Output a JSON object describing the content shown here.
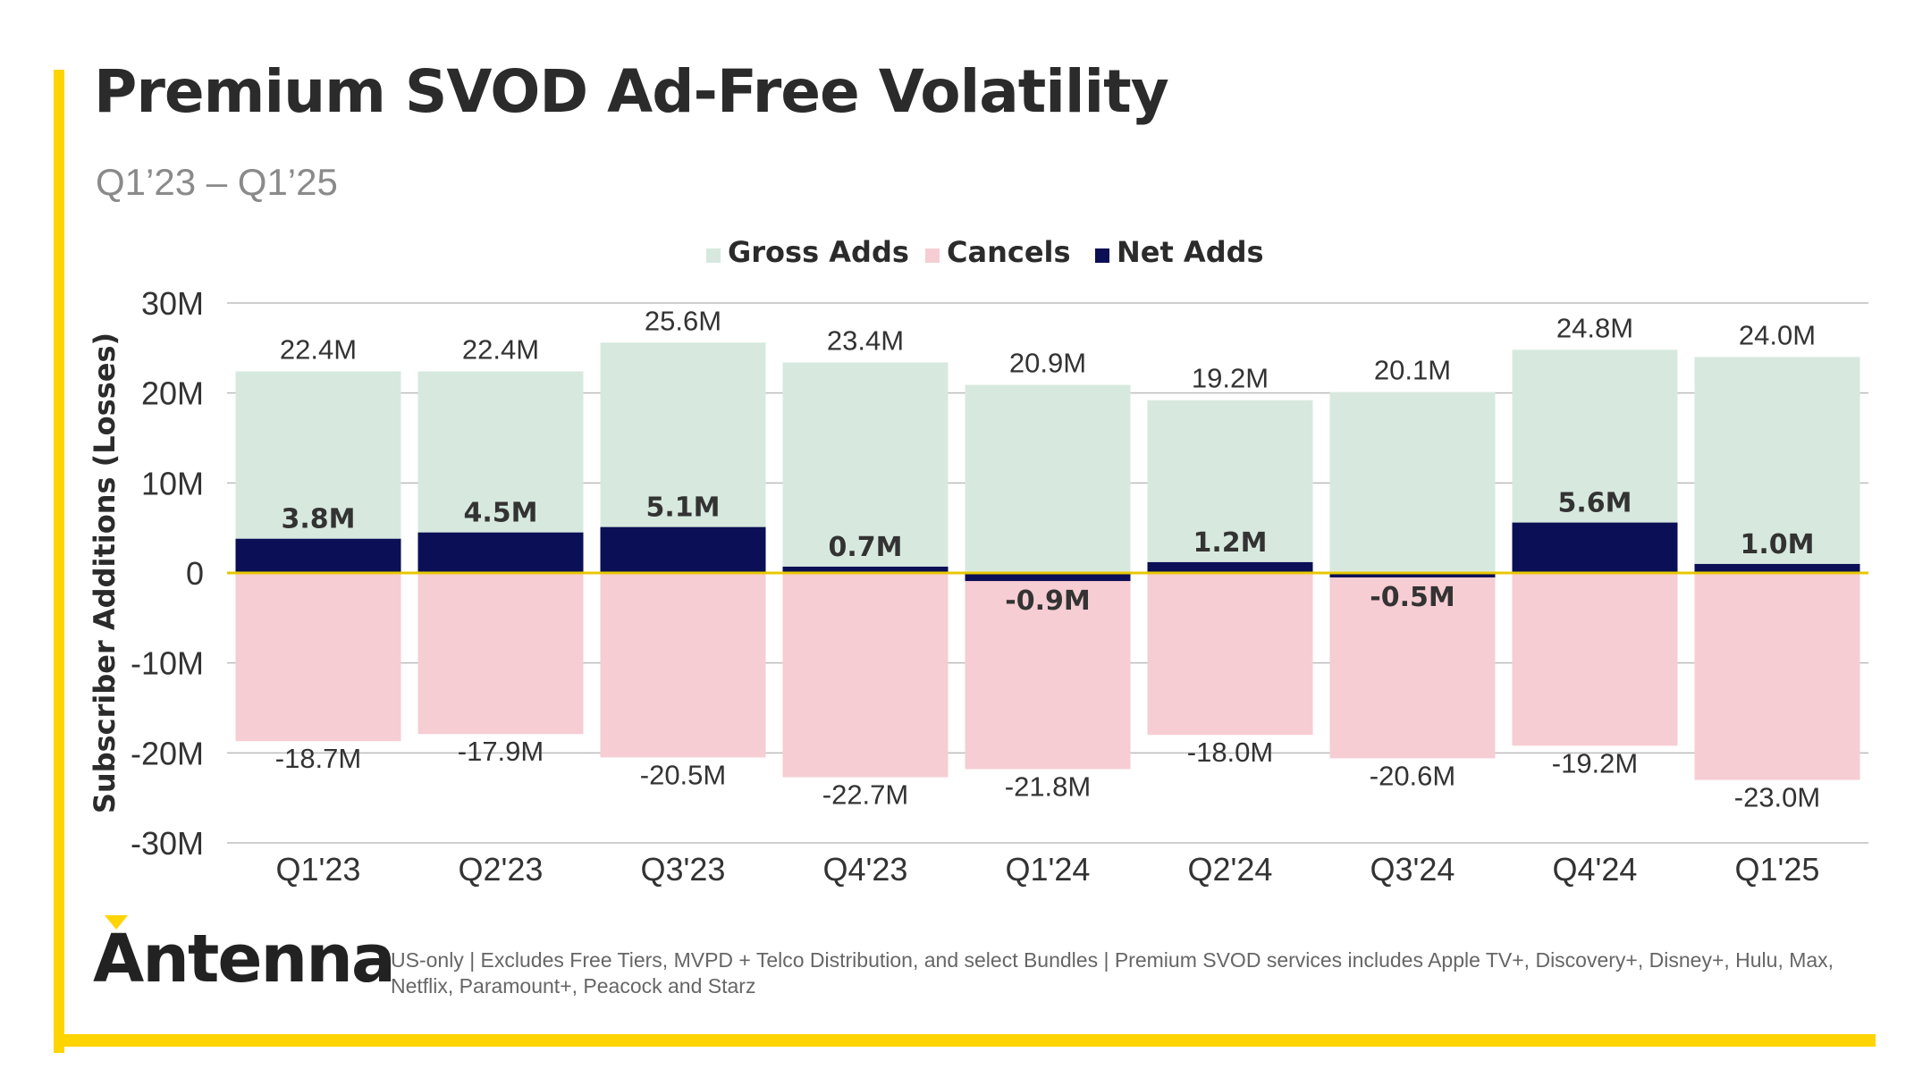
{
  "title": "Premium SVOD Ad-Free Volatility",
  "subtitle": "Q1’23 – Q1’25",
  "logo_text": "Antenna",
  "footnote": "US-only | Excludes Free Tiers, MVPD + Telco Distribution, and select Bundles | Premium SVOD services includes Apple TV+, Discovery+, Disney+, Hulu, Max, Netflix, Paramount+, Peacock and Starz",
  "colors": {
    "gross_adds": "#D7E9DF",
    "cancels": "#F6CDD3",
    "net_adds": "#0B0F55",
    "accent": "#FFD400",
    "zero_line": "#E8C800"
  },
  "chart_data": {
    "type": "bar",
    "title": "Premium SVOD Ad-Free Volatility",
    "subtitle": "Q1’23 – Q1’25",
    "xlabel": "",
    "ylabel": "Subscriber Additions (Losses)",
    "ylim": [
      -30,
      30
    ],
    "y_unit": "M",
    "yticks": [
      30,
      20,
      10,
      0,
      -10,
      -20,
      -30
    ],
    "ytick_labels": [
      "30M",
      "20M",
      "10M",
      "0",
      "-10M",
      "-20M",
      "-30M"
    ],
    "grid": true,
    "legend": "top-center",
    "categories": [
      "Q1'23",
      "Q2'23",
      "Q3'23",
      "Q4'23",
      "Q1'24",
      "Q2'24",
      "Q3'24",
      "Q4'24",
      "Q1'25"
    ],
    "series": [
      {
        "name": "Gross Adds",
        "values": [
          22.4,
          22.4,
          25.6,
          23.4,
          20.9,
          19.2,
          20.1,
          24.8,
          24.0
        ],
        "labels": [
          "22.4M",
          "22.4M",
          "25.6M",
          "23.4M",
          "20.9M",
          "19.2M",
          "20.1M",
          "24.8M",
          "24.0M"
        ]
      },
      {
        "name": "Cancels",
        "values": [
          -18.7,
          -17.9,
          -20.5,
          -22.7,
          -21.8,
          -18.0,
          -20.6,
          -19.2,
          -23.0
        ],
        "labels": [
          "-18.7M",
          "-17.9M",
          "-20.5M",
          "-22.7M",
          "-21.8M",
          "-18.0M",
          "-20.6M",
          "-19.2M",
          "-23.0M"
        ]
      },
      {
        "name": "Net Adds",
        "values": [
          3.8,
          4.5,
          5.1,
          0.7,
          -0.9,
          1.2,
          -0.5,
          5.6,
          1.0
        ],
        "labels": [
          "3.8M",
          "4.5M",
          "5.1M",
          "0.7M",
          "-0.9M",
          "1.2M",
          "-0.5M",
          "5.6M",
          "1.0M"
        ]
      }
    ]
  }
}
